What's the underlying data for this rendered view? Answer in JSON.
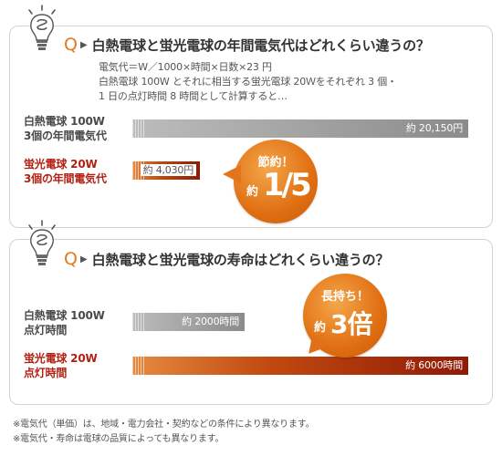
{
  "section1": {
    "q_letter": "Q",
    "question": "白熱電球と蛍光電球の年間電気代はどれくらい違うの？",
    "description": [
      "電気代＝W／1000×時間×日数×23 円",
      "白熱電球 100W とそれに相当する蛍光電球 20Ｗをそれぞれ 3 個・",
      "1 日の点灯時間 8 時間として計算すると…"
    ],
    "badge": {
      "top": "節約！",
      "prefix": "約",
      "big": "1/5"
    }
  },
  "section2": {
    "q_letter": "Q",
    "question": "白熱電球と蛍光電球の寿命はどれくらい違うの？",
    "badge": {
      "top": "長持ち！",
      "prefix": "約",
      "big": "3倍"
    }
  },
  "chart_data": [
    {
      "type": "bar",
      "orientation": "horizontal",
      "categories": [
        "白熱電球 100W 3個の年間電気代",
        "蛍光電球 20W 3個の年間電気代"
      ],
      "category_lines": [
        [
          "白熱電球 100W",
          "3個の年間電気代"
        ],
        [
          "蛍光電球 20W",
          "3個の年間電気代"
        ]
      ],
      "values": [
        20150,
        4030
      ],
      "value_labels": [
        "約 20,150円",
        "約 4,030円"
      ],
      "xlim": [
        0,
        20150
      ]
    },
    {
      "type": "bar",
      "orientation": "horizontal",
      "categories": [
        "白熱電球 100W 点灯時間",
        "蛍光電球 20W 点灯時間"
      ],
      "category_lines": [
        [
          "白熱電球 100W",
          "点灯時間"
        ],
        [
          "蛍光電球 20W",
          "点灯時間"
        ]
      ],
      "values": [
        2000,
        6000
      ],
      "value_labels": [
        "約 2000時間",
        "約 6000時間"
      ],
      "xlim": [
        0,
        6000
      ]
    }
  ],
  "notes": [
    "※電気代（単価）は、地域・電力会社・契約などの条件により異なります。",
    "※電気代・寿命は電球の品質によっても異なります。"
  ],
  "colors": {
    "accent": "#e07a1a",
    "bar_gray": "#8b8b8b",
    "bar_red": "#b32012"
  }
}
